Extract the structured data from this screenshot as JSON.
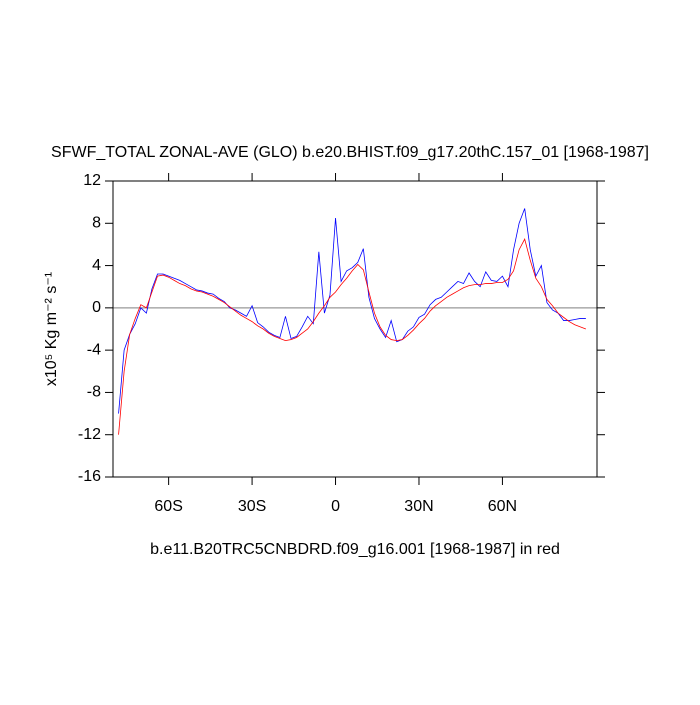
{
  "chart_data": {
    "type": "line",
    "title": "SFWF_TOTAL ZONAL-AVE (GLO) b.e20.BHIST.f09_g17.20thC.157_01 [1968-1987]",
    "subtitle": "b.e11.B20TRC5CNBDRD.f09_g16.001 [1968-1987] in red",
    "y_label": "x10⁵ Kg m⁻² s⁻¹",
    "x": [
      -78,
      -76,
      -74,
      -72,
      -70,
      -68,
      -66,
      -64,
      -62,
      -60,
      -58,
      -56,
      -54,
      -52,
      -50,
      -48,
      -46,
      -44,
      -42,
      -40,
      -38,
      -36,
      -34,
      -32,
      -30,
      -28,
      -26,
      -24,
      -22,
      -20,
      -18,
      -16,
      -14,
      -12,
      -10,
      -8,
      -6,
      -4,
      -2,
      0,
      2,
      4,
      6,
      8,
      10,
      12,
      14,
      16,
      18,
      20,
      22,
      24,
      26,
      28,
      30,
      32,
      34,
      36,
      38,
      40,
      42,
      44,
      46,
      48,
      50,
      52,
      54,
      56,
      58,
      60,
      62,
      64,
      66,
      68,
      70,
      72,
      74,
      76,
      78,
      80,
      82,
      84,
      86,
      88,
      90
    ],
    "series": [
      {
        "color": "#0000ff",
        "values": [
          -10,
          -4,
          -2.5,
          -1.5,
          0,
          -0.5,
          1.8,
          3.2,
          3.2,
          3.0,
          2.8,
          2.6,
          2.3,
          2.0,
          1.7,
          1.6,
          1.4,
          1.3,
          0.9,
          0.6,
          0.0,
          -0.2,
          -0.5,
          -0.8,
          0.2,
          -1.4,
          -1.8,
          -2.3,
          -2.6,
          -2.8,
          -0.8,
          -2.9,
          -2.7,
          -1.8,
          -0.8,
          -1.5,
          5.3,
          -0.5,
          1.2,
          8.5,
          2.5,
          3.5,
          3.8,
          4.3,
          5.6,
          1.0,
          -1.0,
          -2.0,
          -2.8,
          -1.2,
          -3.2,
          -3.0,
          -2.2,
          -1.8,
          -0.9,
          -0.6,
          0.3,
          0.8,
          1.0,
          1.5,
          2.0,
          2.5,
          2.3,
          3.3,
          2.5,
          2.0,
          3.4,
          2.6,
          2.5,
          3.0,
          2.0,
          5.5,
          8.0,
          9.4,
          5.5,
          3.0,
          4.0,
          0.5,
          -0.2,
          -0.5,
          -1.2,
          -1.2,
          -1.1,
          -1.0,
          -1.0
        ]
      },
      {
        "color": "#ff0000",
        "values": [
          -12,
          -6,
          -2.5,
          -1,
          0.3,
          0,
          1.5,
          3.0,
          3.1,
          2.9,
          2.6,
          2.3,
          2.1,
          1.8,
          1.6,
          1.5,
          1.3,
          1.1,
          0.8,
          0.5,
          0.1,
          -0.3,
          -0.7,
          -1.0,
          -1.3,
          -1.7,
          -2.0,
          -2.4,
          -2.7,
          -2.9,
          -3.1,
          -3.0,
          -2.8,
          -2.4,
          -2.0,
          -1.3,
          -0.5,
          0.2,
          1.0,
          1.5,
          2.2,
          2.8,
          3.5,
          4.1,
          3.6,
          1.5,
          -0.5,
          -1.8,
          -2.6,
          -3.0,
          -3.1,
          -3.0,
          -2.6,
          -2.1,
          -1.5,
          -1.0,
          -0.3,
          0.2,
          0.6,
          1.0,
          1.3,
          1.6,
          1.9,
          2.1,
          2.2,
          2.2,
          2.3,
          2.3,
          2.4,
          2.4,
          2.7,
          3.5,
          5.5,
          6.5,
          4.5,
          2.8,
          2.0,
          0.8,
          0.2,
          -0.5,
          -0.9,
          -1.3,
          -1.6,
          -1.8,
          -2.0
        ]
      }
    ],
    "xlim": [
      -80,
      94
    ],
    "xticks": [
      {
        "value": -60,
        "label": "60S"
      },
      {
        "value": -30,
        "label": "30S"
      },
      0,
      {
        "value": 30,
        "label": "30N"
      },
      {
        "value": 60,
        "label": "60N"
      }
    ],
    "ylim": [
      -16,
      12
    ],
    "yticks": [
      -16,
      -12,
      -8,
      -4,
      0,
      4,
      8,
      12
    ],
    "reference_line": 0,
    "reference_color": "#999999"
  }
}
